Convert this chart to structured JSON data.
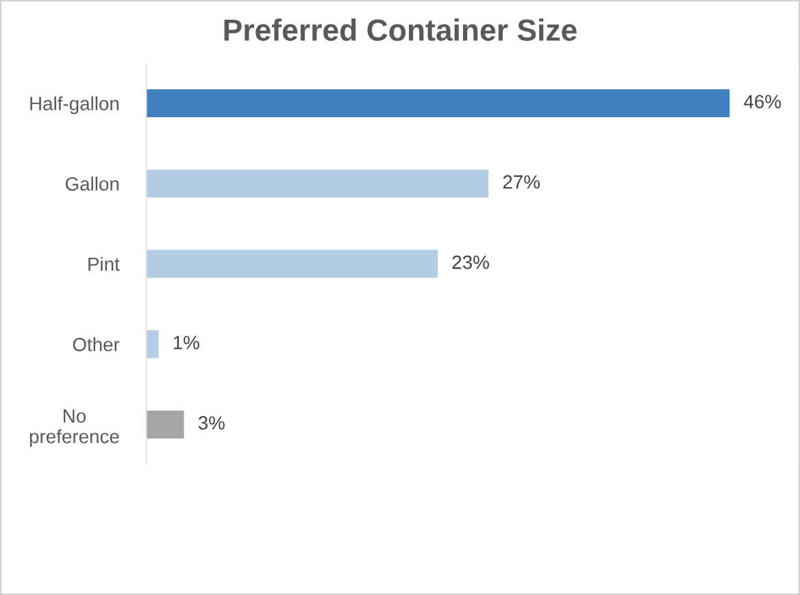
{
  "chart_data": {
    "type": "bar",
    "orientation": "horizontal",
    "title": "Preferred Container Size",
    "categories": [
      "Half-gallon",
      "Gallon",
      "Pint",
      "Other",
      "No\npreference"
    ],
    "values": [
      46,
      27,
      23,
      1,
      3
    ],
    "colors": [
      "#3f80bf",
      "#b4cde4",
      "#b4cde4",
      "#b4cde4",
      "#a6a6a6"
    ],
    "value_labels": [
      "46%",
      "27%",
      "23%",
      "1%",
      "3%"
    ],
    "grid": false,
    "legend": false
  }
}
